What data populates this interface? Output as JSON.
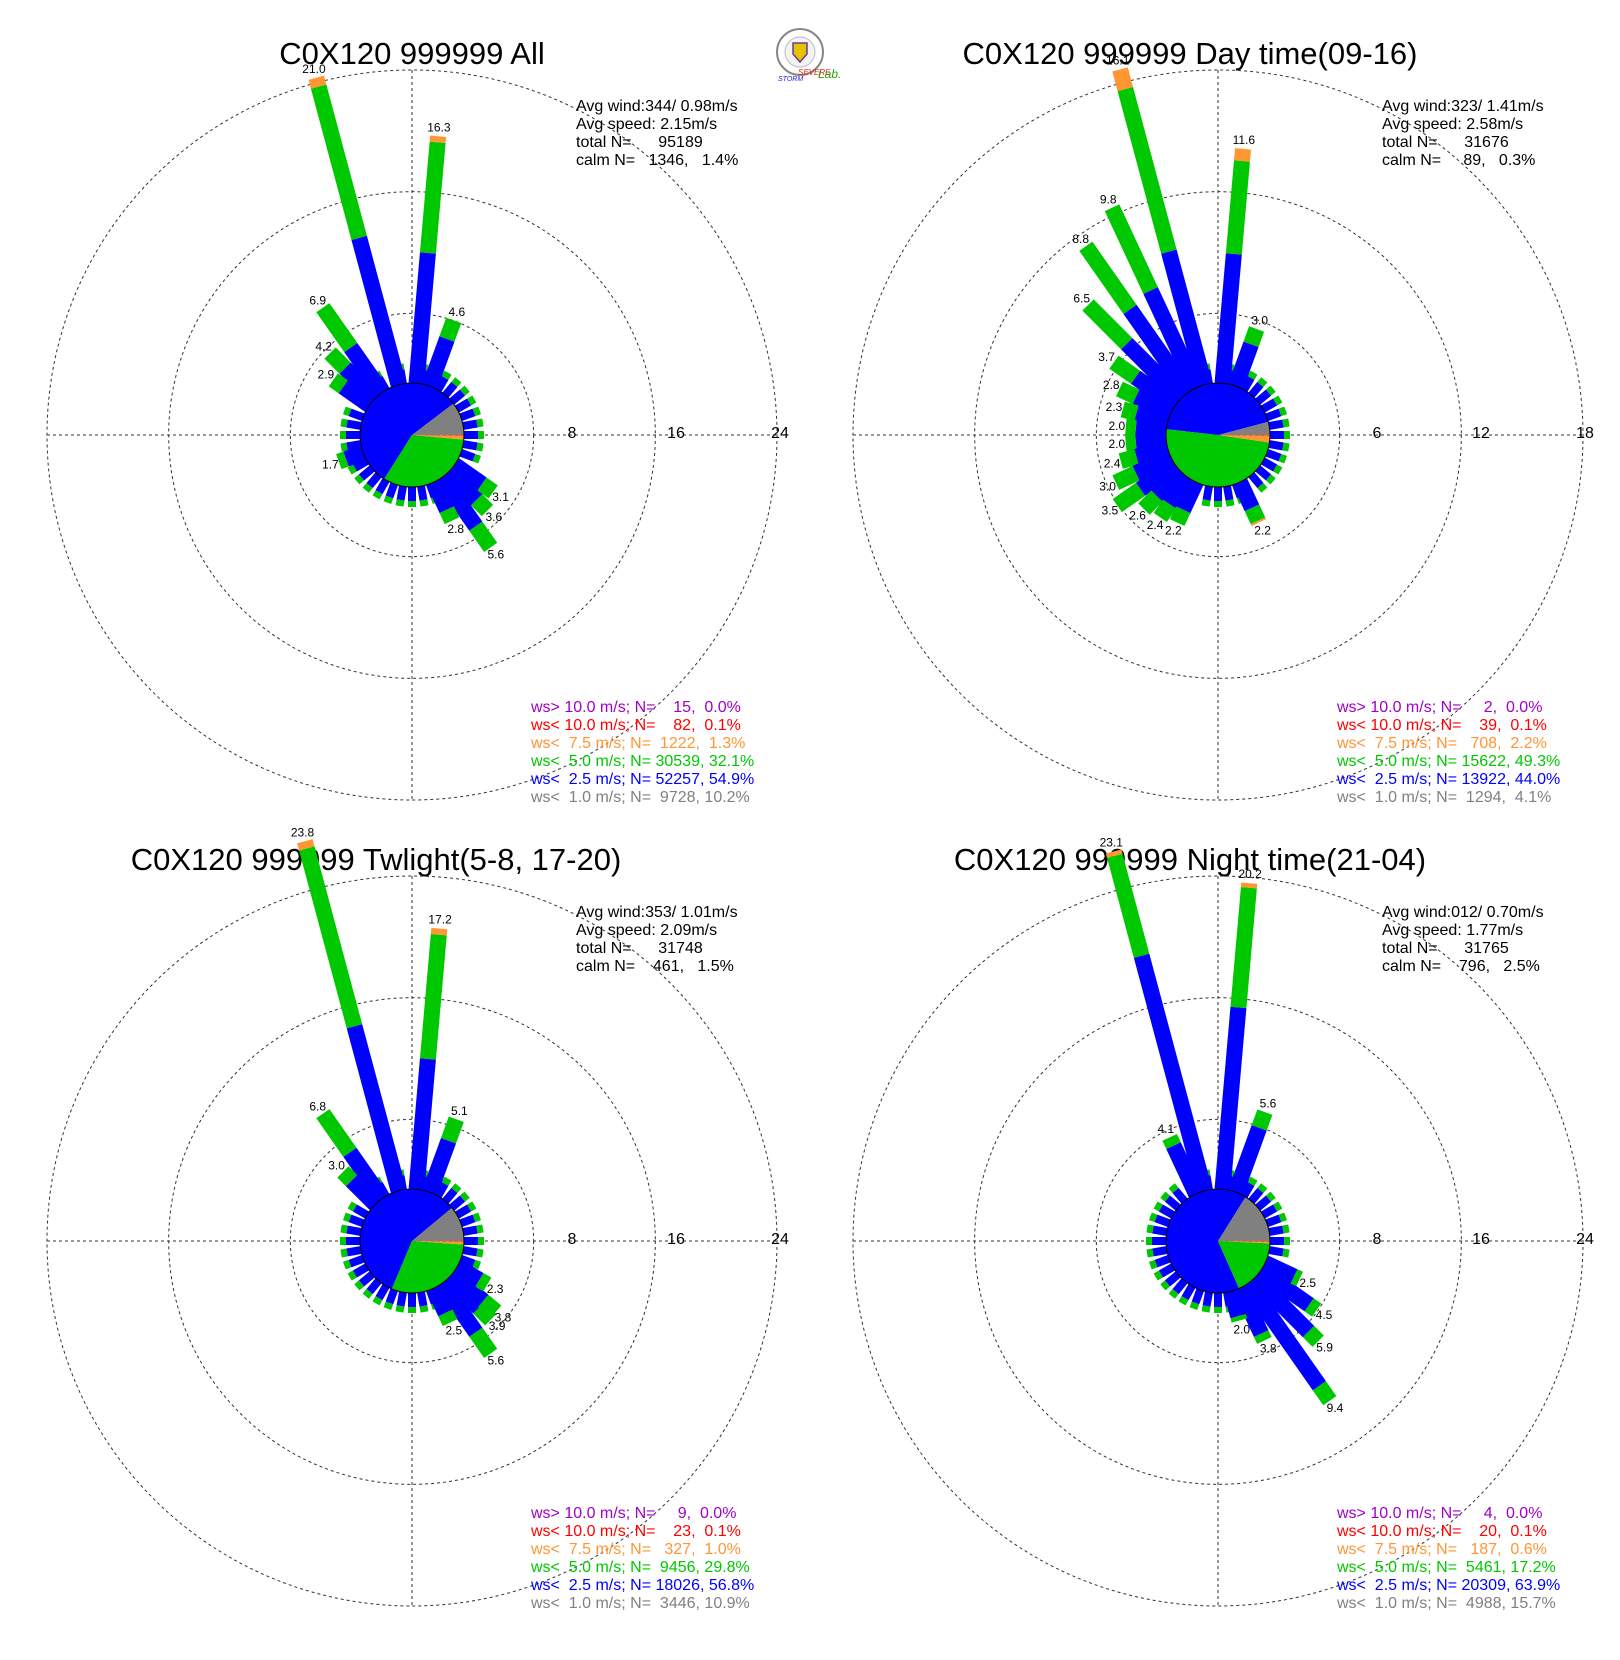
{
  "logo": {
    "text_top": "SEVERE",
    "text_bottom": "STORM",
    "text_lab": "Lab."
  },
  "colors": {
    "above_10": "#a000c8",
    "below_10": "#ff0000",
    "below_7_5": "#ff9632",
    "below_5": "#00c800",
    "below_2_5": "#0000ff",
    "below_1": "#808080"
  },
  "chart_data": [
    {
      "type": "windrose",
      "title": "C0X120 999999 All",
      "ring_labels": [
        "8",
        "16",
        "24"
      ],
      "rmax": 24,
      "stats": {
        "avg_wind": "Avg wind:344/ 0.98m/s",
        "avg_speed": "Avg speed: 2.15m/s",
        "total": "total N=      95189",
        "calm": "calm N=   1346,   1.4%"
      },
      "pie": {
        "below_1": 10.2,
        "below_2_5": 54.9,
        "below_5": 32.1,
        "below_7_5": 1.3,
        "below_10": 0.1,
        "above_10": 0.0
      },
      "legend": [
        {
          "key": "above_10",
          "text": "ws> 10.0 m/s; N=    15,  0.0%"
        },
        {
          "key": "below_10",
          "text": "ws< 10.0 m/s; N=    82,  0.1%"
        },
        {
          "key": "below_7_5",
          "text": "ws<  7.5 m/s; N=  1222,  1.3%"
        },
        {
          "key": "below_5",
          "text": "ws<  5.0 m/s; N= 30539, 32.1%"
        },
        {
          "key": "below_2_5",
          "text": "ws<  2.5 m/s; N= 52257, 54.9%"
        },
        {
          "key": "below_1",
          "text": "ws<  1.0 m/s; N=  9728, 10.2%"
        }
      ],
      "bars": [
        {
          "dir": 345,
          "total": 21.0,
          "label": "21.0",
          "below_2_5": 10.0,
          "below_5": 10.3,
          "below_7_5": 0.6
        },
        {
          "dir": 5,
          "total": 16.3,
          "label": "16.3",
          "below_2_5": 8.6,
          "below_5": 7.3,
          "below_7_5": 0.4
        },
        {
          "dir": 325,
          "total": 6.9,
          "label": "6.9",
          "below_2_5": 3.6,
          "below_5": 3.2
        },
        {
          "dir": 20,
          "total": 4.6,
          "label": "4.6",
          "below_2_5": 3.3,
          "below_5": 1.3
        },
        {
          "dir": 315,
          "total": 4.2,
          "label": "4.2",
          "below_2_5": 2.8,
          "below_5": 1.4
        },
        {
          "dir": 305,
          "total": 2.9,
          "label": "2.9",
          "below_2_5": 2.1,
          "below_5": 0.8
        },
        {
          "dir": 145,
          "total": 5.6,
          "label": "5.6",
          "below_2_5": 3.9,
          "below_5": 1.7
        },
        {
          "dir": 155,
          "total": 2.8,
          "label": "2.8",
          "below_2_5": 2.0,
          "below_5": 0.8
        },
        {
          "dir": 135,
          "total": 3.6,
          "label": "3.6",
          "below_2_5": 2.6,
          "below_5": 1.0
        },
        {
          "dir": 125,
          "total": 3.1,
          "label": "3.1",
          "below_2_5": 2.2,
          "below_5": 0.9
        },
        {
          "dir": 250,
          "total": 1.7,
          "label": "1.7",
          "below_2_5": 1.2,
          "below_5": 0.5
        }
      ]
    },
    {
      "type": "windrose",
      "title": "C0X120 999999 Day time(09-16)",
      "ring_labels": [
        "6",
        "12",
        "18"
      ],
      "rmax": 18,
      "stats": {
        "avg_wind": "Avg wind:323/ 1.41m/s",
        "avg_speed": "Avg speed: 2.58m/s",
        "total": "total N=      31676",
        "calm": "calm N=     89,   0.3%"
      },
      "pie": {
        "below_1": 4.1,
        "below_2_5": 44.0,
        "below_5": 49.3,
        "below_7_5": 2.2,
        "below_10": 0.1,
        "above_10": 0.0
      },
      "legend": [
        {
          "key": "above_10",
          "text": "ws> 10.0 m/s; N=     2,  0.0%"
        },
        {
          "key": "below_10",
          "text": "ws< 10.0 m/s; N=    39,  0.1%"
        },
        {
          "key": "below_7_5",
          "text": "ws<  7.5 m/s; N=   708,  2.2%"
        },
        {
          "key": "below_5",
          "text": "ws<  5.0 m/s; N= 15622, 49.3%"
        },
        {
          "key": "below_2_5",
          "text": "ws<  2.5 m/s; N= 13922, 44.0%"
        },
        {
          "key": "below_1",
          "text": "ws<  1.0 m/s; N=  1294,  4.1%"
        }
      ],
      "bars": [
        {
          "dir": 345,
          "total": 16.1,
          "label": "16.1",
          "below_2_5": 6.8,
          "below_5": 8.3,
          "below_7_5": 1.0
        },
        {
          "dir": 5,
          "total": 11.6,
          "label": "11.6",
          "below_2_5": 6.4,
          "below_5": 4.6,
          "below_7_5": 0.6
        },
        {
          "dir": 335,
          "total": 9.8,
          "label": "9.8",
          "below_2_5": 5.3,
          "below_5": 4.5
        },
        {
          "dir": 325,
          "total": 8.8,
          "label": "8.8",
          "below_2_5": 5.0,
          "below_5": 3.8
        },
        {
          "dir": 315,
          "total": 6.5,
          "label": "6.5",
          "below_2_5": 3.8,
          "below_5": 2.7
        },
        {
          "dir": 20,
          "total": 3.0,
          "label": "3.0",
          "below_2_5": 2.2,
          "below_5": 0.8
        },
        {
          "dir": 305,
          "total": 3.7,
          "label": "3.7",
          "below_2_5": 2.4,
          "below_5": 1.3
        },
        {
          "dir": 295,
          "total": 2.8,
          "label": "2.8",
          "below_2_5": 1.9,
          "below_5": 0.9
        },
        {
          "dir": 285,
          "total": 2.3,
          "label": "2.3",
          "below_2_5": 1.6,
          "below_5": 0.7
        },
        {
          "dir": 275,
          "total": 2.0,
          "label": "2.0",
          "below_2_5": 1.5,
          "below_5": 0.5
        },
        {
          "dir": 265,
          "total": 2.0,
          "label": "2.0",
          "below_2_5": 1.5,
          "below_5": 0.5
        },
        {
          "dir": 255,
          "total": 2.4,
          "label": "2.4",
          "below_2_5": 1.6,
          "below_5": 0.8
        },
        {
          "dir": 245,
          "total": 3.0,
          "label": "3.0",
          "below_2_5": 1.9,
          "below_5": 1.1
        },
        {
          "dir": 235,
          "total": 3.5,
          "label": "3.5",
          "below_2_5": 2.1,
          "below_5": 1.4
        },
        {
          "dir": 225,
          "total": 2.6,
          "label": "2.6",
          "below_2_5": 1.7,
          "below_5": 0.9
        },
        {
          "dir": 215,
          "total": 2.4,
          "label": "2.4",
          "below_2_5": 1.6,
          "below_5": 0.8
        },
        {
          "dir": 205,
          "total": 2.2,
          "label": "2.2",
          "below_2_5": 1.5,
          "below_5": 0.7
        },
        {
          "dir": 155,
          "total": 2.2,
          "label": "2.2",
          "below_2_5": 1.4,
          "below_5": 0.7,
          "below_7_5": 0.1
        }
      ]
    },
    {
      "type": "windrose",
      "title": "C0X120 999999 Twlight(5-8, 17-20)",
      "ring_labels": [
        "8",
        "16",
        "24"
      ],
      "rmax": 24,
      "stats": {
        "avg_wind": "Avg wind:353/ 1.01m/s",
        "avg_speed": "Avg speed: 2.09m/s",
        "total": "total N=      31748",
        "calm": "calm N=    461,   1.5%"
      },
      "pie": {
        "below_1": 10.9,
        "below_2_5": 56.8,
        "below_5": 29.8,
        "below_7_5": 1.0,
        "below_10": 0.1,
        "above_10": 0.0
      },
      "legend": [
        {
          "key": "above_10",
          "text": "ws> 10.0 m/s; N=     9,  0.0%"
        },
        {
          "key": "below_10",
          "text": "ws< 10.0 m/s; N=    23,  0.1%"
        },
        {
          "key": "below_7_5",
          "text": "ws<  7.5 m/s; N=   327,  1.0%"
        },
        {
          "key": "below_5",
          "text": "ws<  5.0 m/s; N=  9456, 29.8%"
        },
        {
          "key": "below_2_5",
          "text": "ws<  2.5 m/s; N= 18026, 56.8%"
        },
        {
          "key": "below_1",
          "text": "ws<  1.0 m/s; N=  3446, 10.9%"
        }
      ],
      "bars": [
        {
          "dir": 345,
          "total": 23.8,
          "label": "23.8",
          "below_2_5": 11.2,
          "below_5": 12.1,
          "below_7_5": 0.5
        },
        {
          "dir": 5,
          "total": 17.2,
          "label": "17.2",
          "below_2_5": 8.6,
          "below_5": 8.2,
          "below_7_5": 0.4
        },
        {
          "dir": 325,
          "total": 6.8,
          "label": "6.8",
          "below_2_5": 3.7,
          "below_5": 3.1
        },
        {
          "dir": 20,
          "total": 5.1,
          "label": "5.1",
          "below_2_5": 3.6,
          "below_5": 1.5
        },
        {
          "dir": 315,
          "total": 3.0,
          "label": "3.0",
          "below_2_5": 2.2,
          "below_5": 0.8
        },
        {
          "dir": 145,
          "total": 5.6,
          "label": "5.6",
          "below_2_5": 3.9,
          "below_5": 1.7
        },
        {
          "dir": 135,
          "total": 3.9,
          "label": "3.9",
          "below_2_5": 2.8,
          "below_5": 1.1
        },
        {
          "dir": 130,
          "total": 3.8,
          "label": "3.8",
          "below_2_5": 2.7,
          "below_5": 1.1
        },
        {
          "dir": 120,
          "total": 2.3,
          "label": "2.3",
          "below_2_5": 1.7,
          "below_5": 0.6
        },
        {
          "dir": 155,
          "total": 2.5,
          "label": "2.5",
          "below_2_5": 1.8,
          "below_5": 0.7
        }
      ]
    },
    {
      "type": "windrose",
      "title": "C0X120 999999 Night time(21-04)",
      "ring_labels": [
        "8",
        "16",
        "24"
      ],
      "rmax": 24,
      "stats": {
        "avg_wind": "Avg wind:012/ 0.70m/s",
        "avg_speed": "Avg speed: 1.77m/s",
        "total": "total N=      31765",
        "calm": "calm N=    796,   2.5%"
      },
      "pie": {
        "below_1": 15.7,
        "below_2_5": 63.9,
        "below_5": 17.2,
        "below_7_5": 0.6,
        "below_10": 0.1,
        "above_10": 0.0
      },
      "legend": [
        {
          "key": "above_10",
          "text": "ws> 10.0 m/s; N=     4,  0.0%"
        },
        {
          "key": "below_10",
          "text": "ws< 10.0 m/s; N=    20,  0.1%"
        },
        {
          "key": "below_7_5",
          "text": "ws<  7.5 m/s; N=   187,  0.6%"
        },
        {
          "key": "below_5",
          "text": "ws<  5.0 m/s; N=  5461, 17.2%"
        },
        {
          "key": "below_2_5",
          "text": "ws<  2.5 m/s; N= 20309, 63.9%"
        },
        {
          "key": "below_1",
          "text": "ws<  1.0 m/s; N=  4988, 15.7%"
        }
      ],
      "bars": [
        {
          "dir": 345,
          "total": 23.1,
          "label": "23.1",
          "below_2_5": 16.0,
          "below_5": 6.8,
          "below_7_5": 0.3
        },
        {
          "dir": 5,
          "total": 20.2,
          "label": "20.2",
          "below_2_5": 12.0,
          "below_5": 7.9,
          "below_7_5": 0.3
        },
        {
          "dir": 20,
          "total": 5.6,
          "label": "5.6",
          "below_2_5": 4.5,
          "below_5": 1.1
        },
        {
          "dir": 335,
          "total": 4.1,
          "label": "4.1",
          "below_2_5": 3.5,
          "below_5": 0.6
        },
        {
          "dir": 145,
          "total": 9.4,
          "label": "9.4",
          "below_2_5": 8.2,
          "below_5": 1.2
        },
        {
          "dir": 135,
          "total": 5.9,
          "label": "5.9",
          "below_2_5": 5.0,
          "below_5": 0.9
        },
        {
          "dir": 125,
          "total": 4.5,
          "label": "4.5",
          "below_2_5": 3.9,
          "below_5": 0.6
        },
        {
          "dir": 115,
          "total": 2.5,
          "label": "2.5",
          "below_2_5": 2.1,
          "below_5": 0.4
        },
        {
          "dir": 155,
          "total": 3.8,
          "label": "3.8",
          "below_2_5": 3.3,
          "below_5": 0.5
        },
        {
          "dir": 165,
          "total": 2.0,
          "label": "2.0",
          "below_2_5": 1.7,
          "below_5": 0.3
        }
      ]
    }
  ]
}
